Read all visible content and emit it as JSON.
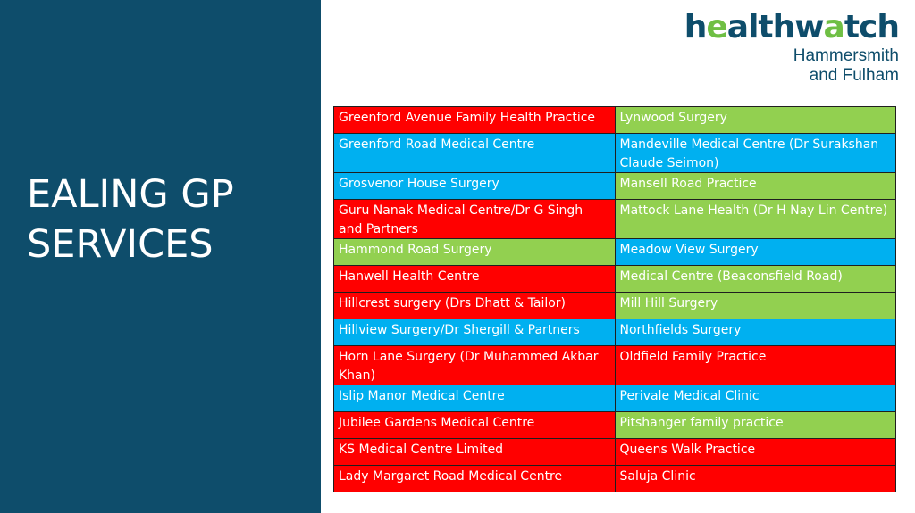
{
  "title": {
    "line1": "EALING GP",
    "line2": "SERVICES"
  },
  "logo": {
    "word": "healthwatch",
    "line1": "Hammersmith",
    "line2": "and Fulham"
  },
  "colors": {
    "red": "#ff0000",
    "blue": "#00b0f0",
    "green": "#92d050",
    "sidebar": "#0e4d6b"
  },
  "rows": [
    {
      "left": {
        "text": "Greenford Avenue Family Health Practice",
        "color": "red"
      },
      "right": {
        "text": "Lynwood Surgery",
        "color": "green"
      }
    },
    {
      "left": {
        "text": "Greenford Road Medical Centre",
        "color": "blue"
      },
      "right": {
        "text": "Mandeville Medical Centre (Dr Surakshan Claude Seimon)",
        "color": "blue"
      }
    },
    {
      "left": {
        "text": "Grosvenor House Surgery",
        "color": "blue"
      },
      "right": {
        "text": "Mansell Road Practice",
        "color": "green"
      }
    },
    {
      "left": {
        "text": "Guru Nanak Medical Centre/Dr G Singh and Partners",
        "color": "red"
      },
      "right": {
        "text": "Mattock Lane Health (Dr H Nay Lin Centre)",
        "color": "green"
      }
    },
    {
      "left": {
        "text": "Hammond Road Surgery",
        "color": "green"
      },
      "right": {
        "text": "Meadow View Surgery",
        "color": "blue"
      }
    },
    {
      "left": {
        "text": "Hanwell Health Centre",
        "color": "red"
      },
      "right": {
        "text": "Medical Centre (Beaconsfield Road)",
        "color": "green"
      }
    },
    {
      "left": {
        "text": "Hillcrest surgery (Drs Dhatt & Tailor)",
        "color": "red"
      },
      "right": {
        "text": "Mill Hill Surgery",
        "color": "green"
      }
    },
    {
      "left": {
        "text": "Hillview Surgery/Dr Shergill & Partners",
        "color": "blue"
      },
      "right": {
        "text": "Northfields Surgery",
        "color": "blue"
      }
    },
    {
      "left": {
        "text": "Horn Lane Surgery (Dr Muhammed Akbar Khan)",
        "color": "red"
      },
      "right": {
        "text": "Oldfield Family Practice",
        "color": "red"
      }
    },
    {
      "left": {
        "text": "Islip Manor Medical Centre",
        "color": "blue"
      },
      "right": {
        "text": "Perivale Medical Clinic",
        "color": "blue"
      }
    },
    {
      "left": {
        "text": "Jubilee Gardens Medical Centre",
        "color": "red"
      },
      "right": {
        "text": "Pitshanger family practice",
        "color": "green"
      }
    },
    {
      "left": {
        "text": "KS Medical Centre Limited",
        "color": "red"
      },
      "right": {
        "text": "Queens Walk Practice",
        "color": "red"
      }
    },
    {
      "left": {
        "text": "Lady Margaret Road Medical Centre",
        "color": "red"
      },
      "right": {
        "text": "Saluja Clinic",
        "color": "red"
      }
    }
  ]
}
